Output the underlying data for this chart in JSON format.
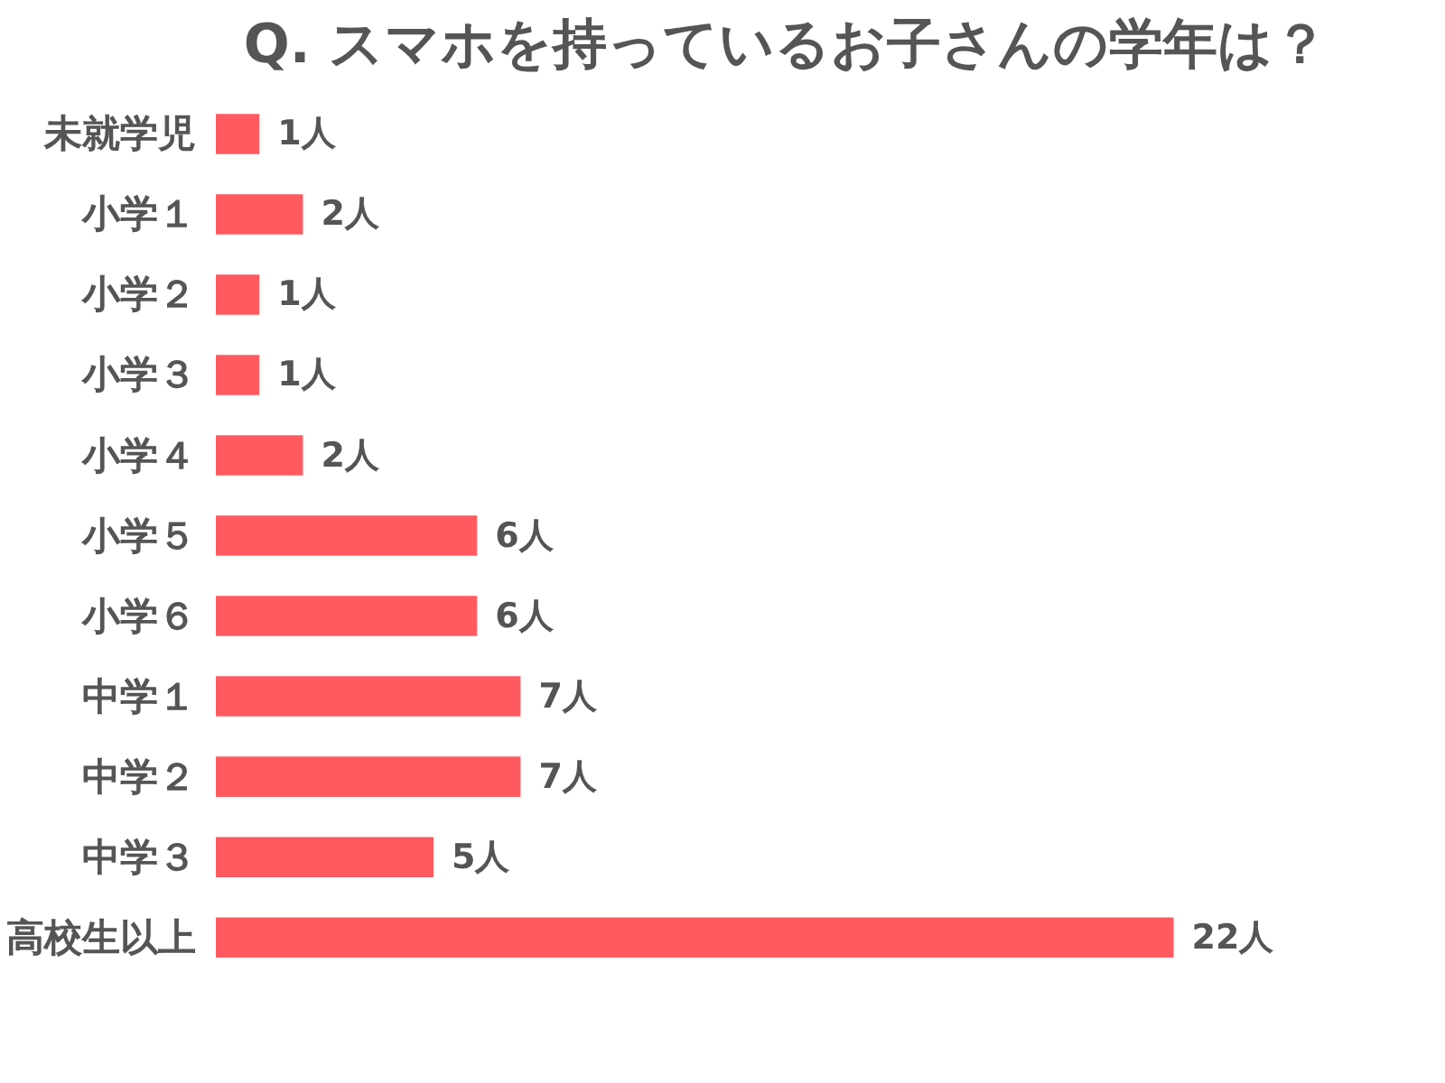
{
  "chart_data": {
    "type": "bar",
    "orientation": "horizontal",
    "title": "Q. スマホを持っているお子さんの学年は？",
    "categories": [
      "未就学児",
      "小学１",
      "小学２",
      "小学３",
      "小学４",
      "小学５",
      "小学６",
      "中学１",
      "中学２",
      "中学３",
      "高校生以上"
    ],
    "values": [
      1,
      2,
      1,
      1,
      2,
      6,
      6,
      7,
      7,
      5,
      22
    ],
    "value_labels": [
      "1人",
      "2人",
      "1人",
      "1人",
      "2人",
      "6人",
      "6人",
      "7人",
      "7人",
      "5人",
      "22人"
    ],
    "color": "#ff5a5f"
  }
}
